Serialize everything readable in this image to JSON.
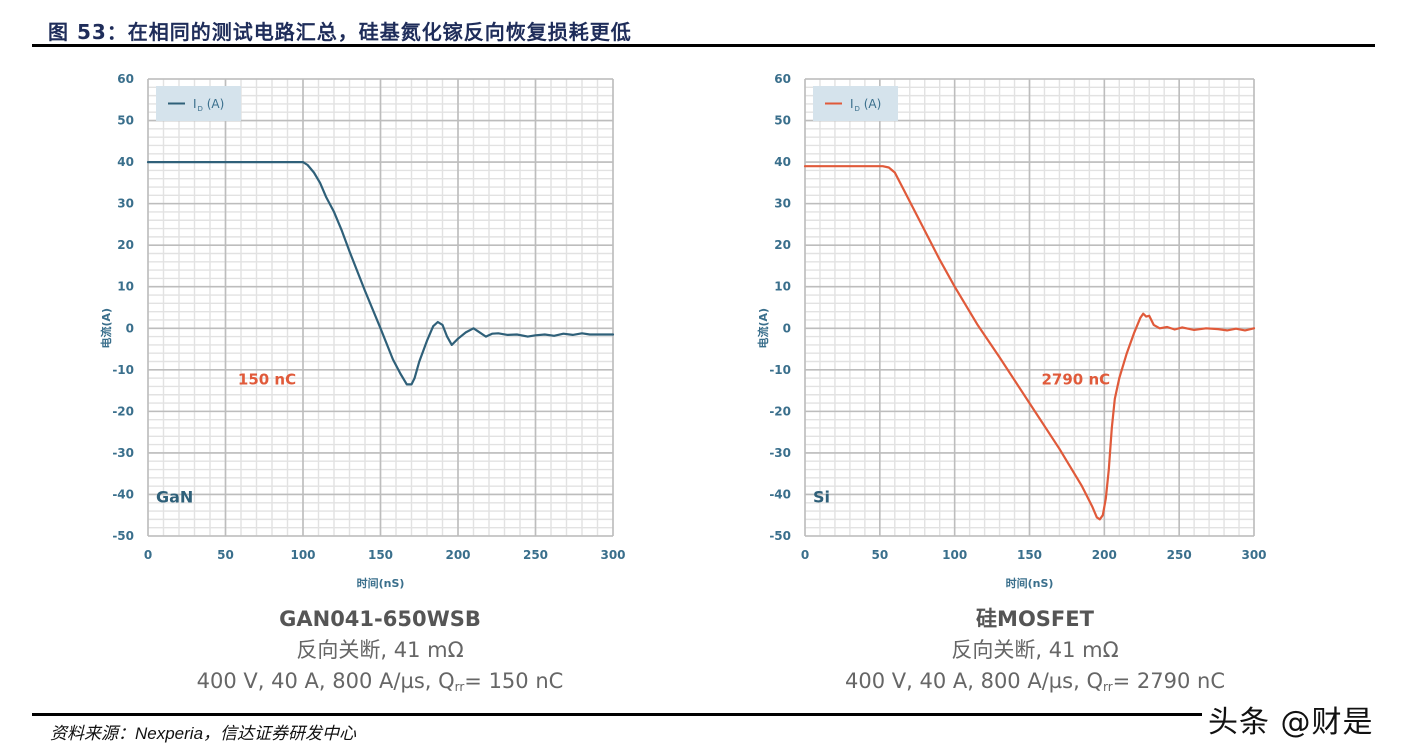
{
  "figure": {
    "title": "图 53：在相同的测试电路汇总，硅基氮化镓反向恢复损耗更低",
    "source_label": "资料来源：",
    "source_en": "Nexperia",
    "source_rest": "，信达证券研发中心",
    "watermark": "头条 @财是"
  },
  "colors": {
    "gan_line": "#2f6079",
    "si_line": "#e05a3a",
    "annotation": "#e05a3a",
    "axis_text": "#3a6f8c",
    "grid_major": "#bdbdbd",
    "grid_minor": "#e2e2e2",
    "legend_bg": "#d5e3ec"
  },
  "chart_data": [
    {
      "type": "line",
      "title": "GAN041-650WSB",
      "device_label": "GaN",
      "xlabel": "时间(nS)",
      "ylabel": "电流(A)",
      "xlim": [
        0,
        300
      ],
      "ylim": [
        -50,
        60
      ],
      "xticks": [
        0,
        50,
        100,
        150,
        200,
        250,
        300
      ],
      "yticks": [
        60,
        50,
        40,
        30,
        20,
        10,
        0,
        -10,
        -20,
        -30,
        -40,
        -50
      ],
      "grid": true,
      "legend": "I_D (A)",
      "legend_position": "top-left",
      "annotation": "150 nC",
      "series": [
        {
          "name": "I_D (A)",
          "x": [
            0,
            100,
            103,
            107,
            111,
            115,
            120,
            125,
            130,
            140,
            150,
            158,
            163,
            167,
            170,
            172,
            175,
            180,
            184,
            187,
            190,
            193,
            196,
            200,
            205,
            210,
            214,
            218,
            222,
            226,
            232,
            238,
            245,
            250,
            256,
            262,
            268,
            274,
            280,
            285,
            290,
            300
          ],
          "y": [
            40,
            40,
            39.3,
            37.5,
            35,
            31.5,
            28,
            23.5,
            18.5,
            9,
            0,
            -7.5,
            -11,
            -13.5,
            -13.5,
            -12,
            -8,
            -3,
            0.5,
            1.5,
            0.8,
            -2,
            -4,
            -2.5,
            -1,
            0,
            -1,
            -2,
            -1.3,
            -1.2,
            -1.6,
            -1.5,
            -2,
            -1.7,
            -1.5,
            -1.8,
            -1.3,
            -1.6,
            -1.2,
            -1.5,
            -1.5,
            -1.5
          ]
        }
      ],
      "caption": {
        "name": "GAN041-650WSB",
        "line1": "反向关断, 41 mΩ",
        "line2_prefix": "400 V, 40 A, 800 A/µs, Q",
        "line2_sub": "rr",
        "line2_suffix": "= 150 nC"
      }
    },
    {
      "type": "line",
      "title": "硅MOSFET",
      "device_label": "Si",
      "xlabel": "时间(nS)",
      "ylabel": "电流(A)",
      "xlim": [
        0,
        300
      ],
      "ylim": [
        -50,
        60
      ],
      "xticks": [
        0,
        50,
        100,
        150,
        200,
        250,
        300
      ],
      "yticks": [
        60,
        50,
        40,
        30,
        20,
        10,
        0,
        -10,
        -20,
        -30,
        -40,
        -50
      ],
      "grid": true,
      "legend": "I_D (A)",
      "legend_position": "top-left",
      "annotation": "2790 nC",
      "series": [
        {
          "name": "I_D (A)",
          "x": [
            0,
            52,
            56,
            60,
            65,
            75,
            90,
            100,
            115,
            130,
            150,
            170,
            185,
            192,
            195,
            197,
            199,
            201,
            203,
            205,
            207,
            210,
            215,
            220,
            224,
            226,
            228,
            230,
            233,
            237,
            242,
            247,
            252,
            260,
            268,
            276,
            282,
            288,
            294,
            300
          ],
          "y": [
            39,
            39,
            38.7,
            37.5,
            34,
            27,
            16.5,
            10,
            1,
            -7,
            -18,
            -29,
            -38,
            -43,
            -45.5,
            -46,
            -45,
            -41,
            -34,
            -24,
            -17,
            -12,
            -6,
            -1,
            2.5,
            3.5,
            2.8,
            3,
            0.8,
            0,
            0.3,
            -0.3,
            0.2,
            -0.4,
            0,
            -0.2,
            -0.5,
            -0.1,
            -0.5,
            0
          ]
        }
      ],
      "caption": {
        "name": "硅MOSFET",
        "line1": "反向关断, 41 mΩ",
        "line2_prefix": "400 V, 40 A, 800 A/µs, Q",
        "line2_sub": "rr",
        "line2_suffix": "= 2790 nC"
      }
    }
  ]
}
